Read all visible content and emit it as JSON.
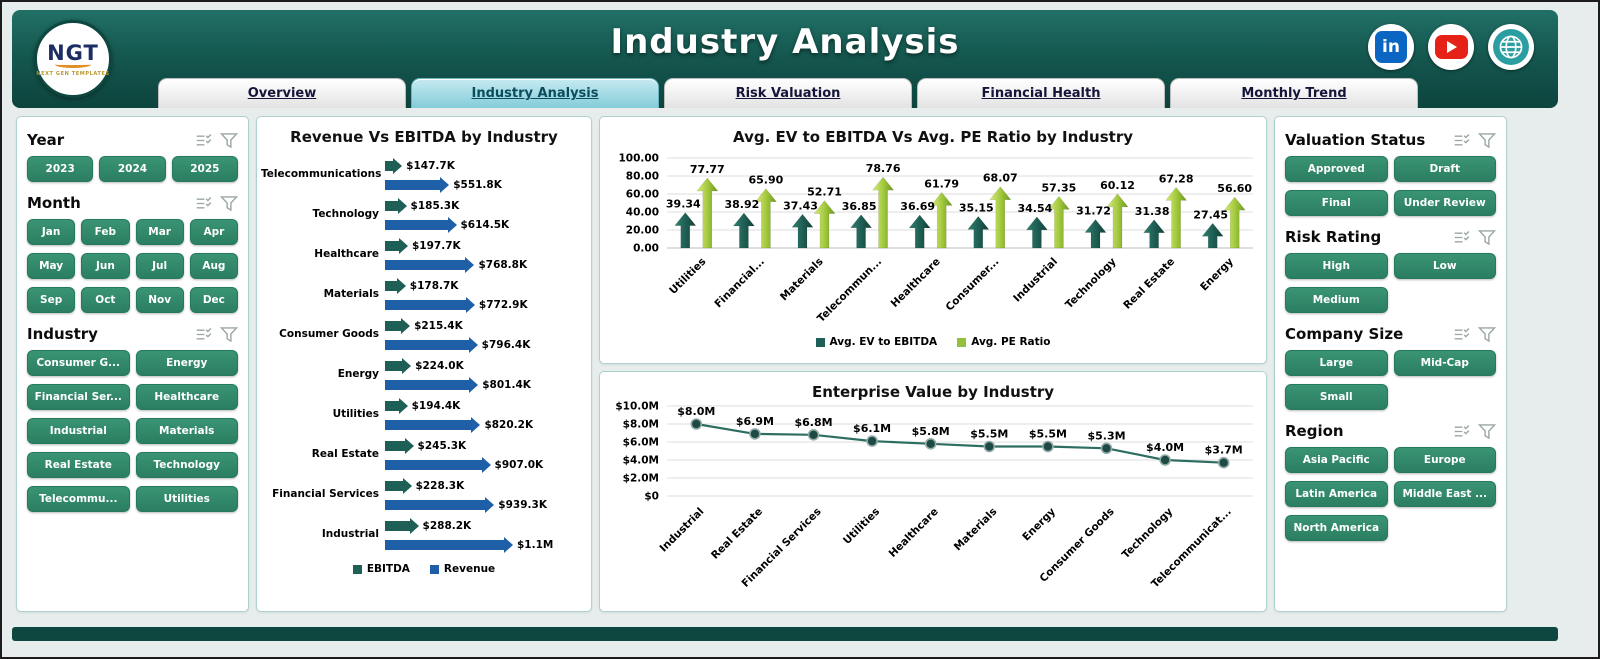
{
  "header": {
    "title": "Industry Analysis",
    "logo": {
      "text": "NGT",
      "subtext": "NEXT GEN TEMPLATES"
    },
    "social": [
      {
        "name": "linkedin",
        "glyph": "in",
        "color": "#0a66c2"
      },
      {
        "name": "youtube",
        "glyph": "play",
        "color": "#e62117"
      },
      {
        "name": "globe",
        "glyph": "globe",
        "color": "#2b9ea1"
      }
    ]
  },
  "tabs": [
    {
      "label": "Overview",
      "active": false
    },
    {
      "label": "Industry Analysis",
      "active": true
    },
    {
      "label": "Risk Valuation",
      "active": false
    },
    {
      "label": "Financial Health",
      "active": false
    },
    {
      "label": "Monthly Trend",
      "active": false
    }
  ],
  "theme": {
    "header_teal": "#14564e",
    "filter_button_green": "#2f8a68",
    "active_tab_blue": "#9fd8e3",
    "ebitda_color": "#1e5f56",
    "revenue_color": "#1f5fa8",
    "pe_green": "#94c13d"
  },
  "filters_left": {
    "sections": [
      {
        "title": "Year",
        "cols": 3,
        "items": [
          "2023",
          "2024",
          "2025"
        ]
      },
      {
        "title": "Month",
        "cols": 4,
        "items": [
          "Jan",
          "Feb",
          "Mar",
          "Apr",
          "May",
          "Jun",
          "Jul",
          "Aug",
          "Sep",
          "Oct",
          "Nov",
          "Dec"
        ]
      },
      {
        "title": "Industry",
        "cols": 2,
        "items": [
          "Consumer G...",
          "Energy",
          "Financial Ser...",
          "Healthcare",
          "Industrial",
          "Materials",
          "Real Estate",
          "Technology",
          "Telecommu...",
          "Utilities"
        ]
      }
    ]
  },
  "filters_right": {
    "sections": [
      {
        "title": "Valuation Status",
        "cols": 2,
        "items": [
          "Approved",
          "Draft",
          "Final",
          "Under Review"
        ]
      },
      {
        "title": "Risk Rating",
        "cols": 2,
        "items": [
          "High",
          "Low",
          "Medium"
        ]
      },
      {
        "title": "Company Size",
        "cols": 2,
        "items": [
          "Large",
          "Mid-Cap",
          "Small"
        ]
      },
      {
        "title": "Region",
        "cols": 2,
        "items": [
          "Asia Pacific",
          "Europe",
          "Latin America",
          "Middle East ...",
          "North America"
        ]
      }
    ]
  },
  "chart_data": [
    {
      "type": "bar",
      "orientation": "horizontal",
      "title": "Revenue Vs EBITDA by Industry",
      "categories": [
        "Telecommunications",
        "Technology",
        "Healthcare",
        "Materials",
        "Consumer Goods",
        "Energy",
        "Utilities",
        "Real Estate",
        "Financial Services",
        "Industrial"
      ],
      "series": [
        {
          "name": "EBITDA",
          "color": "#1e5f56",
          "values": [
            147.7,
            185.3,
            197.7,
            178.7,
            215.4,
            224.0,
            194.4,
            245.3,
            228.3,
            288.2
          ],
          "labels": [
            "$147.7K",
            "$185.3K",
            "$197.7K",
            "$178.7K",
            "$215.4K",
            "$224.0K",
            "$194.4K",
            "$245.3K",
            "$228.3K",
            "$288.2K"
          ]
        },
        {
          "name": "Revenue",
          "color": "#1f5fa8",
          "values": [
            551.8,
            614.5,
            768.8,
            772.9,
            796.4,
            801.4,
            820.2,
            907.0,
            939.3,
            1100.0
          ],
          "labels": [
            "$551.8K",
            "$614.5K",
            "$768.8K",
            "$772.9K",
            "$796.4K",
            "$801.4K",
            "$820.2K",
            "$907.0K",
            "$939.3K",
            "$1.1M"
          ]
        }
      ],
      "legend_position": "bottom",
      "value_unit": "K USD"
    },
    {
      "type": "bar",
      "title": "Avg. EV to EBITDA Vs Avg. PE Ratio by Industry",
      "categories": [
        "Utilities",
        "Financial...",
        "Materials",
        "Telecommun...",
        "Healthcare",
        "Consumer...",
        "Industrial",
        "Technology",
        "Real Estate",
        "Energy"
      ],
      "series": [
        {
          "name": "Avg. EV to EBITDA",
          "color": "#1e5f56",
          "values": [
            39.34,
            38.92,
            37.43,
            36.85,
            36.69,
            35.15,
            34.54,
            31.72,
            31.38,
            27.45
          ]
        },
        {
          "name": "Avg. PE Ratio",
          "color": "#94c13d",
          "values": [
            77.77,
            65.9,
            52.71,
            78.76,
            61.79,
            68.07,
            57.35,
            60.12,
            67.28,
            56.6
          ]
        }
      ],
      "y_ticks": [
        "0.00",
        "20.00",
        "40.00",
        "60.00",
        "80.00",
        "100.00"
      ],
      "tick_step": 20,
      "ylim": [
        0,
        100
      ],
      "grid": true,
      "legend_position": "bottom"
    },
    {
      "type": "line",
      "title": "Enterprise Value by Industry",
      "categories": [
        "Industrial",
        "Real Estate",
        "Financial Services",
        "Utilities",
        "Healthcare",
        "Materials",
        "Energy",
        "Consumer Goods",
        "Technology",
        "Telecommunicat..."
      ],
      "values": [
        8.0,
        6.9,
        6.8,
        6.1,
        5.8,
        5.5,
        5.5,
        5.3,
        4.0,
        3.7
      ],
      "labels": [
        "$8.0M",
        "$6.9M",
        "$6.8M",
        "$6.1M",
        "$5.8M",
        "$5.5M",
        "$5.5M",
        "$5.3M",
        "$4.0M",
        "$3.7M"
      ],
      "y_ticks": [
        "$0",
        "$2.0M",
        "$4.0M",
        "$6.0M",
        "$8.0M",
        "$10.0M"
      ],
      "tick_step": 2,
      "ylim": [
        0,
        10
      ],
      "grid": true,
      "line_color": "#2e6e62"
    }
  ]
}
